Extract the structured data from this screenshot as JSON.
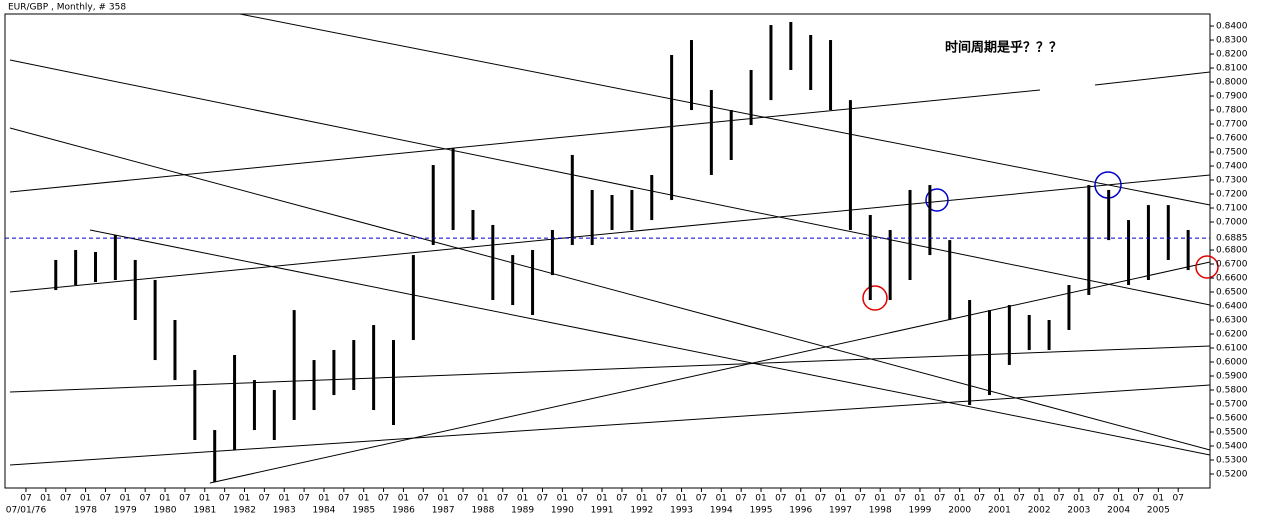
{
  "chart_data": {
    "type": "ohlc",
    "title": "EUR/GBP , Monthly, # 358",
    "annotation": "时间周期是乎？？？",
    "xlim": [
      1976.4,
      2006.3
    ],
    "ylim": [
      0.51,
      0.8486
    ],
    "current": {
      "value": 0.6885,
      "label": "0.6885"
    },
    "bar_color": "#000000",
    "current_color": "#0000cc",
    "annotation_color": "#e00000",
    "yticks": [
      {
        "value": 0.52,
        "label": "0.5200"
      },
      {
        "value": 0.53,
        "label": "0.5300"
      },
      {
        "value": 0.54,
        "label": "0.5400"
      },
      {
        "value": 0.55,
        "label": "0.5500"
      },
      {
        "value": 0.56,
        "label": "0.5600"
      },
      {
        "value": 0.57,
        "label": "0.5700"
      },
      {
        "value": 0.58,
        "label": "0.5800"
      },
      {
        "value": 0.59,
        "label": "0.5900"
      },
      {
        "value": 0.6,
        "label": "0.6000"
      },
      {
        "value": 0.61,
        "label": "0.6100"
      },
      {
        "value": 0.62,
        "label": "0.6200"
      },
      {
        "value": 0.63,
        "label": "0.6300"
      },
      {
        "value": 0.64,
        "label": "0.6400"
      },
      {
        "value": 0.65,
        "label": "0.6500"
      },
      {
        "value": 0.66,
        "label": "0.6600"
      },
      {
        "value": 0.67,
        "label": "0.6700"
      },
      {
        "value": 0.68,
        "label": "0.6800"
      },
      {
        "value": 0.7,
        "label": "0.7000"
      },
      {
        "value": 0.71,
        "label": "0.7100"
      },
      {
        "value": 0.72,
        "label": "0.7200"
      },
      {
        "value": 0.73,
        "label": "0.7300"
      },
      {
        "value": 0.74,
        "label": "0.7400"
      },
      {
        "value": 0.75,
        "label": "0.7500"
      },
      {
        "value": 0.76,
        "label": "0.7600"
      },
      {
        "value": 0.77,
        "label": "0.7700"
      },
      {
        "value": 0.78,
        "label": "0.7800"
      },
      {
        "value": 0.79,
        "label": "0.7900"
      },
      {
        "value": 0.8,
        "label": "0.8000"
      },
      {
        "value": 0.81,
        "label": "0.8100"
      },
      {
        "value": 0.82,
        "label": "0.8200"
      },
      {
        "value": 0.83,
        "label": "0.8300"
      },
      {
        "value": 0.84,
        "label": "0.8400"
      }
    ],
    "xticks": [
      {
        "value": 1976.5,
        "label": "07"
      },
      {
        "value": 1977,
        "label": "01"
      },
      {
        "value": 1977.5,
        "label": "07"
      },
      {
        "value": 1978,
        "label": "01"
      },
      {
        "value": 1978.5,
        "label": "07"
      },
      {
        "value": 1979,
        "label": "01"
      },
      {
        "value": 1979.5,
        "label": "07"
      },
      {
        "value": 1980,
        "label": "01"
      },
      {
        "value": 1980.5,
        "label": "07"
      },
      {
        "value": 1981,
        "label": "01"
      },
      {
        "value": 1981.5,
        "label": "07"
      },
      {
        "value": 1982,
        "label": "01"
      },
      {
        "value": 1982.5,
        "label": "07"
      },
      {
        "value": 1983,
        "label": "01"
      },
      {
        "value": 1983.5,
        "label": "07"
      },
      {
        "value": 1984,
        "label": "01"
      },
      {
        "value": 1984.5,
        "label": "07"
      },
      {
        "value": 1985,
        "label": "01"
      },
      {
        "value": 1985.5,
        "label": "07"
      },
      {
        "value": 1986,
        "label": "01"
      },
      {
        "value": 1986.5,
        "label": "07"
      },
      {
        "value": 1987,
        "label": "01"
      },
      {
        "value": 1987.5,
        "label": "07"
      },
      {
        "value": 1988,
        "label": "01"
      },
      {
        "value": 1988.5,
        "label": "07"
      },
      {
        "value": 1989,
        "label": "01"
      },
      {
        "value": 1989.5,
        "label": "07"
      },
      {
        "value": 1990,
        "label": "01"
      },
      {
        "value": 1990.5,
        "label": "07"
      },
      {
        "value": 1991,
        "label": "01"
      },
      {
        "value": 1991.5,
        "label": "07"
      },
      {
        "value": 1992,
        "label": "01"
      },
      {
        "value": 1992.5,
        "label": "07"
      },
      {
        "value": 1993,
        "label": "01"
      },
      {
        "value": 1993.5,
        "label": "07"
      },
      {
        "value": 1994,
        "label": "01"
      },
      {
        "value": 1994.5,
        "label": "07"
      },
      {
        "value": 1995,
        "label": "01"
      },
      {
        "value": 1995.5,
        "label": "07"
      },
      {
        "value": 1996,
        "label": "01"
      },
      {
        "value": 1996.5,
        "label": "07"
      },
      {
        "value": 1997,
        "label": "01"
      },
      {
        "value": 1997.5,
        "label": "07"
      },
      {
        "value": 1998,
        "label": "01"
      },
      {
        "value": 1998.5,
        "label": "07"
      },
      {
        "value": 1999,
        "label": "01"
      },
      {
        "value": 1999.5,
        "label": "07"
      },
      {
        "value": 2000,
        "label": "01"
      },
      {
        "value": 2000.5,
        "label": "07"
      },
      {
        "value": 2001,
        "label": "01"
      },
      {
        "value": 2001.5,
        "label": "07"
      },
      {
        "value": 2002,
        "label": "01"
      },
      {
        "value": 2002.5,
        "label": "07"
      },
      {
        "value": 2003,
        "label": "01"
      },
      {
        "value": 2003.5,
        "label": "07"
      },
      {
        "value": 2004,
        "label": "01"
      },
      {
        "value": 2004.5,
        "label": "07"
      },
      {
        "value": 2005,
        "label": "01"
      },
      {
        "value": 2005.5,
        "label": "07"
      }
    ],
    "start_label": {
      "value": 1976.5,
      "label": "07/01/76"
    },
    "year_labels": [
      1978,
      1979,
      1980,
      1981,
      1982,
      1983,
      1984,
      1985,
      1986,
      1987,
      1988,
      1989,
      1990,
      1991,
      1992,
      1993,
      1994,
      1995,
      1996,
      1997,
      1998,
      1999,
      2000,
      2001,
      2002,
      2003,
      2004,
      2005
    ],
    "bars": [
      {
        "x": 1977,
        "low": 0.6514,
        "high": 0.6729
      },
      {
        "x": 1977.5,
        "low": 0.655,
        "high": 0.68
      },
      {
        "x": 1978,
        "low": 0.6571,
        "high": 0.6786
      },
      {
        "x": 1978.5,
        "low": 0.6586,
        "high": 0.6907
      },
      {
        "x": 1979,
        "low": 0.63,
        "high": 0.6729
      },
      {
        "x": 1979.5,
        "low": 0.6014,
        "high": 0.6586
      },
      {
        "x": 1980,
        "low": 0.5871,
        "high": 0.63
      },
      {
        "x": 1980.5,
        "low": 0.5443,
        "high": 0.5943
      },
      {
        "x": 1981,
        "low": 0.5143,
        "high": 0.5514
      },
      {
        "x": 1981.5,
        "low": 0.5371,
        "high": 0.605
      },
      {
        "x": 1982,
        "low": 0.5514,
        "high": 0.5871
      },
      {
        "x": 1982.5,
        "low": 0.5443,
        "high": 0.58
      },
      {
        "x": 1983,
        "low": 0.5586,
        "high": 0.6371
      },
      {
        "x": 1983.5,
        "low": 0.5657,
        "high": 0.6014
      },
      {
        "x": 1984,
        "low": 0.5764,
        "high": 0.6086
      },
      {
        "x": 1984.5,
        "low": 0.58,
        "high": 0.6157
      },
      {
        "x": 1985,
        "low": 0.5657,
        "high": 0.6264
      },
      {
        "x": 1985.5,
        "low": 0.555,
        "high": 0.6157
      },
      {
        "x": 1986,
        "low": 0.6157,
        "high": 0.6764
      },
      {
        "x": 1986.5,
        "low": 0.6836,
        "high": 0.7407
      },
      {
        "x": 1987,
        "low": 0.6943,
        "high": 0.7529
      },
      {
        "x": 1987.5,
        "low": 0.6871,
        "high": 0.7086
      },
      {
        "x": 1988,
        "low": 0.6443,
        "high": 0.6979
      },
      {
        "x": 1988.5,
        "low": 0.6407,
        "high": 0.6764
      },
      {
        "x": 1989,
        "low": 0.6336,
        "high": 0.68
      },
      {
        "x": 1989.5,
        "low": 0.6621,
        "high": 0.6943
      },
      {
        "x": 1990,
        "low": 0.6836,
        "high": 0.7479
      },
      {
        "x": 1990.5,
        "low": 0.6836,
        "high": 0.7229
      },
      {
        "x": 1991,
        "low": 0.6943,
        "high": 0.7193
      },
      {
        "x": 1991.5,
        "low": 0.6943,
        "high": 0.7229
      },
      {
        "x": 1992,
        "low": 0.7014,
        "high": 0.7336
      },
      {
        "x": 1992.5,
        "low": 0.7157,
        "high": 0.8193
      },
      {
        "x": 1993,
        "low": 0.78,
        "high": 0.83
      },
      {
        "x": 1993.5,
        "low": 0.7336,
        "high": 0.7943
      },
      {
        "x": 1994,
        "low": 0.7443,
        "high": 0.78
      },
      {
        "x": 1994.5,
        "low": 0.7693,
        "high": 0.8086
      },
      {
        "x": 1995,
        "low": 0.7871,
        "high": 0.8407
      },
      {
        "x": 1995.5,
        "low": 0.8086,
        "high": 0.8429
      },
      {
        "x": 1996,
        "low": 0.7943,
        "high": 0.8336
      },
      {
        "x": 1996.5,
        "low": 0.78,
        "high": 0.83
      },
      {
        "x": 1997,
        "low": 0.6943,
        "high": 0.7871
      },
      {
        "x": 1997.5,
        "low": 0.6443,
        "high": 0.705
      },
      {
        "x": 1998,
        "low": 0.6443,
        "high": 0.6943
      },
      {
        "x": 1998.5,
        "low": 0.6586,
        "high": 0.7229
      },
      {
        "x": 1999,
        "low": 0.6764,
        "high": 0.7264
      },
      {
        "x": 1999.5,
        "low": 0.63,
        "high": 0.6871
      },
      {
        "x": 2000,
        "low": 0.5693,
        "high": 0.6443
      },
      {
        "x": 2000.5,
        "low": 0.5764,
        "high": 0.6371
      },
      {
        "x": 2001,
        "low": 0.5979,
        "high": 0.6407
      },
      {
        "x": 2001.5,
        "low": 0.6086,
        "high": 0.6336
      },
      {
        "x": 2002,
        "low": 0.6086,
        "high": 0.63
      },
      {
        "x": 2002.5,
        "low": 0.6229,
        "high": 0.655
      },
      {
        "x": 2003,
        "low": 0.6479,
        "high": 0.7264
      },
      {
        "x": 2003.5,
        "low": 0.6871,
        "high": 0.7229
      },
      {
        "x": 2004,
        "low": 0.655,
        "high": 0.7014
      },
      {
        "x": 2004.5,
        "low": 0.6586,
        "high": 0.7121
      },
      {
        "x": 2005,
        "low": 0.6729,
        "high": 0.7121
      },
      {
        "x": 2005.5,
        "low": 0.6657,
        "high": 0.6943
      }
    ]
  }
}
